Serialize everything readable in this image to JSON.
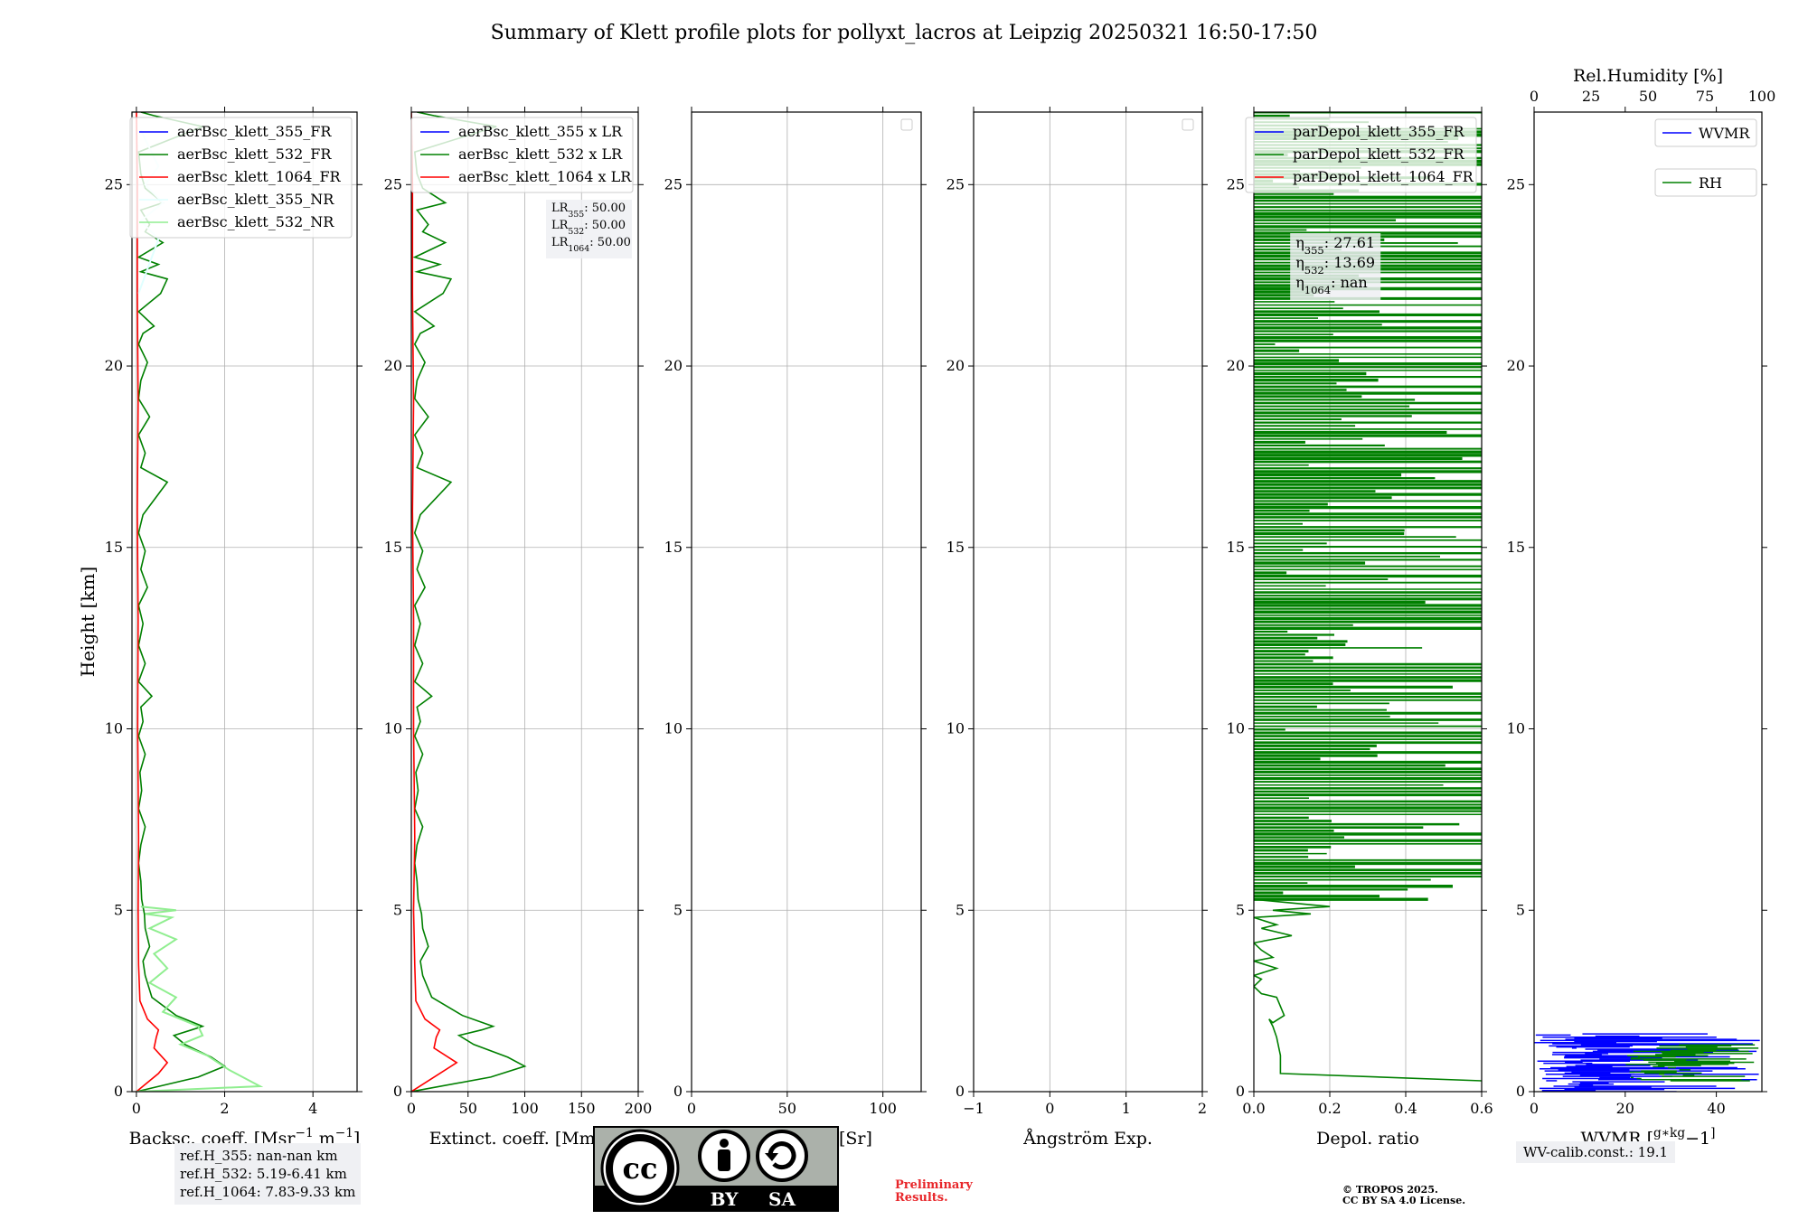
{
  "figure": {
    "title": "Summary of Klett profile plots for pollyxt_lacros at Leipzig 20250321 16:50-17:50",
    "shared_ylabel": "Height [km]",
    "ref_heights": [
      "ref.H_355: nan-nan km",
      "ref.H_532: 5.19-6.41 km",
      "ref.H_1064: 7.83-9.33 km"
    ],
    "wv_calib": "WV-calib.const.: 19.1",
    "preliminary": [
      "Preliminary",
      "Results."
    ],
    "copyright": [
      "© TROPOS 2025.",
      "CC BY SA 4.0 License."
    ],
    "license_badge": {
      "cc": "cc",
      "by": "BY",
      "sa": "SA"
    },
    "colors": {
      "blue": "#0000ff",
      "green": "#008000",
      "red": "#ff0000",
      "lightgreen": "#90ee90",
      "lightcyan": "#e0ffff",
      "grid": "#b0b0b0"
    }
  },
  "chart_data": [
    {
      "type": "line",
      "id": "backscatter",
      "xlabel": "Backsc. coeff. [Msr$^{-1}$ m$^{-1}$]",
      "xlabel_parts": [
        "Backsc. coeff. [Msr",
        "−1",
        " m",
        "−1",
        "]"
      ],
      "xlim": [
        -0.1,
        5.0
      ],
      "ylim": [
        0,
        27
      ],
      "xticks": [
        0,
        2,
        4
      ],
      "yticks": [
        0,
        5,
        10,
        15,
        20,
        25
      ],
      "grid": true,
      "legend_placement": "top-right",
      "series": [
        {
          "name": "aerBsc_klett_355_FR",
          "color": "#0000ff",
          "x": [
            0,
            0
          ],
          "y": [
            0,
            0
          ]
        },
        {
          "name": "aerBsc_klett_532_FR",
          "color": "#008000",
          "x": [
            0.0,
            1.4,
            2.0,
            1.7,
            1.1,
            0.85,
            1.25,
            1.5,
            0.9,
            0.35,
            0.2,
            0.15,
            0.3,
            0.2,
            0.18,
            0.12,
            0.1,
            0.05,
            0.1,
            0.2,
            0.05,
            0.12,
            0.08,
            0.2,
            0.05,
            0.15,
            0.1,
            0.35,
            0.05,
            0.2,
            0.05,
            0.15,
            0.05,
            0.25,
            0.1,
            0.2,
            0.05,
            0.15,
            0.7,
            0.1,
            0.2,
            0.05,
            0.3,
            0.05,
            0.1,
            0.25,
            0.05,
            0.15,
            0.4,
            0.05,
            0.55,
            0.7,
            0.1,
            0.5,
            0.05,
            0.6,
            0.2,
            0.3,
            0.1,
            0.6,
            0.2,
            0.1,
            0.05,
            1.5,
            0.4,
            0.1
          ],
          "y": [
            0.0,
            0.4,
            0.7,
            0.95,
            1.3,
            1.55,
            1.7,
            1.8,
            2.1,
            2.6,
            3.2,
            3.6,
            4.0,
            4.5,
            4.9,
            5.3,
            5.8,
            6.3,
            6.8,
            7.3,
            7.8,
            8.3,
            8.8,
            9.3,
            9.8,
            10.2,
            10.6,
            10.9,
            11.3,
            11.8,
            12.3,
            12.9,
            13.4,
            13.9,
            14.4,
            14.9,
            15.4,
            15.9,
            16.8,
            17.2,
            17.6,
            18.1,
            18.6,
            19.1,
            19.6,
            20.1,
            20.6,
            20.9,
            21.1,
            21.5,
            22.0,
            22.4,
            22.6,
            22.8,
            23.0,
            23.4,
            23.7,
            23.9,
            24.3,
            24.5,
            24.9,
            25.3,
            25.9,
            26.6,
            26.9,
            27.0
          ]
        },
        {
          "name": "aerBsc_klett_1064_FR",
          "color": "#ff0000",
          "x": [
            0.0,
            0.5,
            0.7,
            0.4,
            0.45,
            0.5,
            0.25,
            0.08,
            0.05,
            0.04,
            0.05,
            0.03,
            0.04,
            0.02,
            0.04,
            0.02,
            0.02,
            0.0
          ],
          "y": [
            0.0,
            0.5,
            0.8,
            1.2,
            1.5,
            1.7,
            2.0,
            2.5,
            3.5,
            5.0,
            7.0,
            10.0,
            13.0,
            16.0,
            19.0,
            22.0,
            25.0,
            27.0
          ]
        },
        {
          "name": "aerBsc_klett_355_NR",
          "color": "#e0ffff",
          "x": [
            0.05,
            0.5,
            0.1,
            0.6,
            0.2,
            0.5,
            0.1
          ],
          "y": [
            22.0,
            23.5,
            24.0,
            24.5,
            25.0,
            25.5,
            26.5
          ]
        },
        {
          "name": "aerBsc_klett_532_NR",
          "color": "#90ee90",
          "x": [
            0.0,
            2.8,
            2.1,
            1.6,
            1.0,
            1.5,
            1.4,
            0.6,
            0.9,
            0.3,
            0.7,
            0.4,
            0.9,
            0.3,
            0.8,
            0.2,
            0.9,
            0.1
          ],
          "y": [
            0.0,
            0.15,
            0.6,
            1.0,
            1.3,
            1.55,
            1.8,
            2.2,
            2.6,
            3.0,
            3.4,
            3.8,
            4.2,
            4.5,
            4.8,
            4.9,
            5.0,
            5.1
          ]
        }
      ]
    },
    {
      "type": "line",
      "id": "extinction",
      "xlabel": "Extinct. coeff. [Mm$^{-1}$]",
      "xlabel_parts": [
        "Extinct. coeff. [Mm",
        "−1",
        "]"
      ],
      "xlim": [
        0,
        200
      ],
      "ylim": [
        0,
        27
      ],
      "xticks": [
        0,
        50,
        100,
        150,
        200
      ],
      "yticks": [
        0,
        5,
        10,
        15,
        20,
        25
      ],
      "grid": true,
      "legend_placement": "top-right",
      "annotation": [
        [
          "LR",
          "355",
          ": 50.00"
        ],
        [
          "LR",
          "532",
          ": 50.00"
        ],
        [
          "LR",
          "1064",
          ": 50.00"
        ]
      ],
      "series": [
        {
          "name": "aerBsc_klett_355 x LR",
          "color": "#0000ff",
          "x": [
            0,
            0
          ],
          "y": [
            0,
            0
          ]
        },
        {
          "name": "aerBsc_klett_532 x LR",
          "color": "#008000",
          "x": [
            0,
            70,
            100,
            85,
            55,
            42,
            62,
            72,
            45,
            18,
            10,
            8,
            15,
            10,
            9,
            6,
            5,
            3,
            5,
            10,
            3,
            6,
            4,
            10,
            3,
            8,
            5,
            18,
            3,
            10,
            3,
            8,
            3,
            12,
            5,
            10,
            3,
            8,
            35,
            5,
            10,
            3,
            15,
            3,
            5,
            12,
            3,
            8,
            20,
            3,
            28,
            35,
            5,
            25,
            3,
            30,
            10,
            15,
            5,
            30,
            10,
            5,
            3,
            75,
            20,
            5
          ],
          "y": [
            0.0,
            0.4,
            0.7,
            0.95,
            1.3,
            1.55,
            1.7,
            1.8,
            2.1,
            2.6,
            3.2,
            3.6,
            4.0,
            4.5,
            4.9,
            5.3,
            5.8,
            6.3,
            6.8,
            7.3,
            7.8,
            8.3,
            8.8,
            9.3,
            9.8,
            10.2,
            10.6,
            10.9,
            11.3,
            11.8,
            12.3,
            12.9,
            13.4,
            13.9,
            14.4,
            14.9,
            15.4,
            15.9,
            16.8,
            17.2,
            17.6,
            18.1,
            18.6,
            19.1,
            19.6,
            20.1,
            20.6,
            20.9,
            21.1,
            21.5,
            22.0,
            22.4,
            22.6,
            22.8,
            23.0,
            23.4,
            23.7,
            23.9,
            24.3,
            24.5,
            24.9,
            25.3,
            25.9,
            26.6,
            26.9,
            27.0
          ]
        },
        {
          "name": "aerBsc_klett_1064 x LR",
          "color": "#ff0000",
          "x": [
            0,
            25,
            40,
            20,
            22,
            25,
            12,
            4,
            3,
            2,
            3,
            2,
            2,
            1,
            2,
            1,
            1,
            0
          ],
          "y": [
            0.0,
            0.5,
            0.8,
            1.2,
            1.5,
            1.7,
            2.0,
            2.5,
            3.5,
            5.0,
            7.0,
            10.0,
            13.0,
            16.0,
            19.0,
            22.0,
            25.0,
            27.0
          ]
        }
      ]
    },
    {
      "type": "line",
      "id": "lidar_ratio",
      "xlabel": "Lidar ratio [Sr]",
      "xlim": [
        0,
        120
      ],
      "ylim": [
        0,
        27
      ],
      "xticks": [
        0,
        50,
        100
      ],
      "yticks": [
        0,
        5,
        10,
        15,
        20,
        25
      ],
      "grid": true,
      "legend_placement": "top-right",
      "series": []
    },
    {
      "type": "line",
      "id": "angstrom",
      "xlabel": "Ångström Exp.",
      "xlim": [
        -1,
        2
      ],
      "ylim": [
        0,
        27
      ],
      "xticks": [
        -1,
        0,
        1,
        2
      ],
      "yticks": [
        0,
        5,
        10,
        15,
        20,
        25
      ],
      "grid": true,
      "legend_placement": "top-right",
      "series": []
    },
    {
      "type": "line",
      "id": "depol",
      "xlabel": "Depol. ratio",
      "xlim": [
        0,
        0.6
      ],
      "ylim": [
        0,
        27
      ],
      "xticks": [
        0.0,
        0.2,
        0.4,
        0.6
      ],
      "yticks": [
        0,
        5,
        10,
        15,
        20,
        25
      ],
      "grid": true,
      "legend_placement": "top-right",
      "annotation": [
        [
          "η",
          "355",
          ": 27.61"
        ],
        [
          "η",
          "532",
          ": 13.69"
        ],
        [
          "η",
          "1064",
          ": nan"
        ]
      ],
      "series": [
        {
          "name": "parDepol_klett_355_FR",
          "color": "#0000ff",
          "x": [
            0,
            0
          ],
          "y": [
            0,
            0
          ]
        },
        {
          "name": "parDepol_klett_532_FR",
          "color": "#008000",
          "x": [
            0.6,
            0.07,
            0.07,
            0.06,
            0.05,
            0.04,
            0.05,
            0.08,
            0.06,
            0.02,
            0.0,
            0.02,
            0.0,
            0.06,
            0.0,
            0.05,
            0.02,
            0.0,
            0.1,
            0.02,
            0.06,
            0.0,
            0.15,
            0.05,
            0.2,
            0.0
          ],
          "y": [
            0.3,
            0.5,
            1.0,
            1.5,
            1.8,
            2.0,
            1.9,
            2.1,
            2.6,
            2.7,
            2.9,
            3.1,
            3.2,
            3.4,
            3.6,
            3.7,
            3.9,
            4.1,
            4.3,
            4.5,
            4.6,
            4.8,
            4.9,
            5.0,
            5.1,
            5.3
          ]
        },
        {
          "name": "parDepol_klett_1064_FR",
          "color": "#ff0000",
          "x": [
            0,
            0
          ],
          "y": [
            0,
            0
          ]
        }
      ],
      "segments": {
        "name": "parDepol_klett_532_FR",
        "color": "#008000",
        "y_range": [
          5.3,
          27.0
        ],
        "x_max": 0.6
      }
    },
    {
      "type": "line",
      "id": "wvmr",
      "xlabel": "WVMR [$g*kg^{-1}$]",
      "xlabel_parts": [
        "WVMR [",
        "g∗kg",
        "−1",
        "]"
      ],
      "top_xlabel": "Rel.Humidity [%]",
      "xlim": [
        0,
        50
      ],
      "ylim": [
        0,
        27
      ],
      "xticks": [
        0,
        20,
        40
      ],
      "yticks": [
        0,
        5,
        10,
        15,
        20,
        25
      ],
      "top_xlim": [
        0,
        100
      ],
      "top_xticks": [
        0,
        25,
        50,
        75,
        100
      ],
      "legend_placement": "top-right",
      "series": [
        {
          "name": "WVMR",
          "color": "#0000ff",
          "y_range": [
            0.0,
            1.6
          ],
          "x_range": [
            0,
            50
          ]
        },
        {
          "name": "RH",
          "color": "#008000",
          "y_range": [
            0.3,
            1.3
          ],
          "x_range": [
            20,
            50
          ]
        }
      ]
    }
  ]
}
